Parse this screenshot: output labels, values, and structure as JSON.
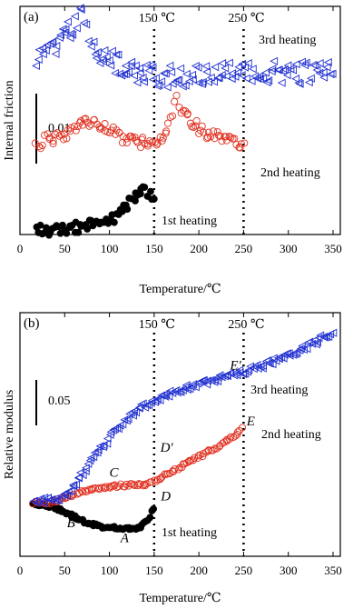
{
  "chart_data": [
    {
      "panel_label": "(a)",
      "type": "scatter",
      "xlabel": "Temperature/℃",
      "ylabel": "Internal friction",
      "xlim": [
        0,
        375
      ],
      "x_ticks": [
        "0",
        "50",
        "100",
        "150",
        "200",
        "250",
        "300",
        "350"
      ],
      "grid": false,
      "scale_bar_label": "0.01",
      "vlines": [
        {
          "x": 150,
          "label": "150 ℃"
        },
        {
          "x": 250,
          "label": "250 ℃"
        }
      ],
      "series": [
        {
          "name": "1st heating",
          "marker": "filled-circle",
          "color": "#000000",
          "points": [
            [
              18,
              0.0005
            ],
            [
              25,
              0.0007
            ],
            [
              35,
              0.0006
            ],
            [
              45,
              0.0008
            ],
            [
              55,
              0.0009
            ],
            [
              65,
              0.001
            ],
            [
              75,
              0.0012
            ],
            [
              85,
              0.0015
            ],
            [
              95,
              0.0018
            ],
            [
              105,
              0.0022
            ],
            [
              112,
              0.003
            ],
            [
              118,
              0.0038
            ],
            [
              123,
              0.0042
            ],
            [
              128,
              0.0048
            ],
            [
              132,
              0.0055
            ],
            [
              136,
              0.0062
            ],
            [
              140,
              0.0058
            ],
            [
              145,
              0.005
            ],
            [
              150,
              0.0042
            ]
          ]
        },
        {
          "name": "2nd heating",
          "marker": "open-circle",
          "color": "#e03020",
          "points": [
            [
              18,
              0.0118
            ],
            [
              30,
              0.0125
            ],
            [
              40,
              0.0128
            ],
            [
              50,
              0.0132
            ],
            [
              60,
              0.0138
            ],
            [
              70,
              0.0145
            ],
            [
              80,
              0.0148
            ],
            [
              90,
              0.0145
            ],
            [
              100,
              0.0138
            ],
            [
              110,
              0.013
            ],
            [
              120,
              0.0125
            ],
            [
              130,
              0.0122
            ],
            [
              140,
              0.012
            ],
            [
              150,
              0.0118
            ],
            [
              160,
              0.013
            ],
            [
              168,
              0.015
            ],
            [
              175,
              0.018
            ],
            [
              182,
              0.016
            ],
            [
              190,
              0.015
            ],
            [
              200,
              0.014
            ],
            [
              210,
              0.0132
            ],
            [
              220,
              0.0128
            ],
            [
              230,
              0.0125
            ],
            [
              240,
              0.0122
            ],
            [
              250,
              0.0118
            ]
          ]
        },
        {
          "name": "3rd heating",
          "marker": "open-triangle-left",
          "color": "#2030d0",
          "points": [
            [
              18,
              0.0232
            ],
            [
              30,
              0.024
            ],
            [
              40,
              0.0252
            ],
            [
              50,
              0.0262
            ],
            [
              60,
              0.0272
            ],
            [
              65,
              0.0282
            ],
            [
              70,
              0.0288
            ],
            [
              75,
              0.0268
            ],
            [
              80,
              0.025
            ],
            [
              90,
              0.0238
            ],
            [
              100,
              0.023
            ],
            [
              110,
              0.0225
            ],
            [
              120,
              0.022
            ],
            [
              130,
              0.0215
            ],
            [
              140,
              0.0212
            ],
            [
              150,
              0.021
            ],
            [
              170,
              0.0208
            ],
            [
              190,
              0.021
            ],
            [
              210,
              0.0212
            ],
            [
              230,
              0.0212
            ],
            [
              250,
              0.021
            ],
            [
              270,
              0.0212
            ],
            [
              290,
              0.0214
            ],
            [
              310,
              0.0212
            ],
            [
              330,
              0.0214
            ],
            [
              350,
              0.0215
            ]
          ]
        }
      ]
    },
    {
      "panel_label": "(b)",
      "type": "scatter",
      "xlabel": "Temperature/℃",
      "ylabel": "Relative modulus",
      "xlim": [
        0,
        375
      ],
      "x_ticks": [
        "0",
        "50",
        "100",
        "150",
        "200",
        "250",
        "300",
        "350"
      ],
      "grid": false,
      "scale_bar_label": "0.05",
      "vlines": [
        {
          "x": 150,
          "label": "150 ℃"
        },
        {
          "x": 250,
          "label": "250 ℃"
        }
      ],
      "annotations": [
        {
          "text": "A",
          "x": 117,
          "y": -0.044
        },
        {
          "text": "B",
          "x": 57,
          "y": -0.027
        },
        {
          "text": "C",
          "x": 105,
          "y": 0.03
        },
        {
          "text": "D",
          "x": 163,
          "y": 0.003
        },
        {
          "text": "D′",
          "x": 164,
          "y": 0.058
        },
        {
          "text": "E",
          "x": 258,
          "y": 0.088
        },
        {
          "text": "E′",
          "x": 241,
          "y": 0.151
        }
      ],
      "series": [
        {
          "name": "1st heating",
          "marker": "filled-circle",
          "color": "#000000",
          "points": [
            [
              15,
              0.0
            ],
            [
              25,
              -0.002
            ],
            [
              35,
              -0.004
            ],
            [
              45,
              -0.008
            ],
            [
              55,
              -0.013
            ],
            [
              65,
              -0.018
            ],
            [
              75,
              -0.022
            ],
            [
              85,
              -0.025
            ],
            [
              95,
              -0.027
            ],
            [
              105,
              -0.028
            ],
            [
              115,
              -0.029
            ],
            [
              125,
              -0.029
            ],
            [
              135,
              -0.027
            ],
            [
              143,
              -0.02
            ],
            [
              150,
              -0.005
            ]
          ]
        },
        {
          "name": "2nd heating",
          "marker": "open-circle",
          "color": "#e03020",
          "points": [
            [
              15,
              0.001
            ],
            [
              25,
              0.0
            ],
            [
              35,
              0.001
            ],
            [
              45,
              0.004
            ],
            [
              55,
              0.008
            ],
            [
              65,
              0.011
            ],
            [
              75,
              0.014
            ],
            [
              85,
              0.016
            ],
            [
              95,
              0.018
            ],
            [
              105,
              0.019
            ],
            [
              115,
              0.02
            ],
            [
              125,
              0.021
            ],
            [
              135,
              0.021
            ],
            [
              145,
              0.022
            ],
            [
              150,
              0.024
            ],
            [
              160,
              0.03
            ],
            [
              170,
              0.036
            ],
            [
              180,
              0.042
            ],
            [
              190,
              0.047
            ],
            [
              200,
              0.052
            ],
            [
              210,
              0.058
            ],
            [
              220,
              0.063
            ],
            [
              230,
              0.069
            ],
            [
              240,
              0.076
            ],
            [
              248,
              0.084
            ]
          ]
        },
        {
          "name": "3rd heating",
          "marker": "open-triangle-left",
          "color": "#2030d0",
          "points": [
            [
              15,
              0.002
            ],
            [
              25,
              0.003
            ],
            [
              35,
              0.003
            ],
            [
              45,
              0.005
            ],
            [
              55,
              0.012
            ],
            [
              65,
              0.025
            ],
            [
              75,
              0.04
            ],
            [
              85,
              0.055
            ],
            [
              95,
              0.068
            ],
            [
              105,
              0.08
            ],
            [
              115,
              0.091
            ],
            [
              125,
              0.1
            ],
            [
              135,
              0.108
            ],
            [
              145,
              0.113
            ],
            [
              155,
              0.118
            ],
            [
              165,
              0.123
            ],
            [
              175,
              0.127
            ],
            [
              185,
              0.13
            ],
            [
              195,
              0.133
            ],
            [
              205,
              0.136
            ],
            [
              215,
              0.139
            ],
            [
              225,
              0.142
            ],
            [
              235,
              0.145
            ],
            [
              245,
              0.147
            ],
            [
              255,
              0.15
            ],
            [
              265,
              0.153
            ],
            [
              275,
              0.157
            ],
            [
              285,
              0.161
            ],
            [
              295,
              0.165
            ],
            [
              305,
              0.169
            ],
            [
              315,
              0.174
            ],
            [
              325,
              0.179
            ],
            [
              335,
              0.185
            ],
            [
              345,
              0.191
            ],
            [
              350,
              0.194
            ]
          ]
        }
      ]
    }
  ]
}
